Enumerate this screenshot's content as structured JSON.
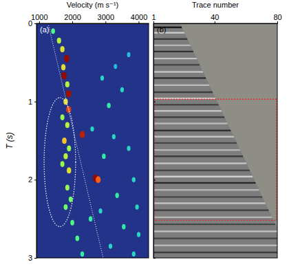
{
  "chart_data": [
    {
      "type": "scatter",
      "title": "(a)",
      "x_label": "Velocity (m s⁻¹)",
      "y_label": "T (s)",
      "xlim": [
        920,
        4300
      ],
      "xticks": [
        1000,
        2000,
        3000,
        4000
      ],
      "ylim": [
        0,
        3
      ],
      "yticks": [
        0,
        1,
        2,
        3
      ],
      "x": [
        1420,
        1600,
        1700,
        1830,
        1730,
        1750,
        1850,
        1890,
        1800,
        1890,
        1700,
        1850,
        2300,
        1760,
        1900,
        1800,
        1700,
        1900,
        2700,
        2780,
        1850,
        1950,
        1800,
        2000,
        2150,
        2300,
        2900,
        3300,
        3500,
        3100,
        2600,
        3250,
        3700,
        2950,
        3850,
        3350,
        3950,
        2850,
        3550,
        4000,
        3150,
        3850,
        2550,
        3700
      ],
      "values": [
        0.1,
        0.22,
        0.33,
        0.45,
        0.56,
        0.67,
        0.78,
        0.9,
        1.0,
        1.1,
        1.2,
        1.3,
        1.42,
        1.5,
        1.6,
        1.7,
        1.8,
        1.88,
        1.98,
        2.0,
        2.1,
        2.25,
        2.35,
        2.55,
        2.75,
        2.95,
        0.7,
        0.55,
        0.85,
        1.05,
        1.35,
        1.45,
        1.6,
        1.7,
        2.0,
        2.2,
        2.35,
        2.4,
        2.6,
        2.7,
        2.85,
        2.95,
        2.5,
        0.4
      ],
      "semblance": [
        0.4,
        0.55,
        0.6,
        1.0,
        0.6,
        1.0,
        0.55,
        0.95,
        0.6,
        0.85,
        0.5,
        0.55,
        0.9,
        0.65,
        0.5,
        0.55,
        0.5,
        0.6,
        1.0,
        0.8,
        0.5,
        0.45,
        0.45,
        0.4,
        0.4,
        0.35,
        0.3,
        0.25,
        0.3,
        0.35,
        0.3,
        0.3,
        0.3,
        0.35,
        0.3,
        0.35,
        0.3,
        0.3,
        0.35,
        0.3,
        0.3,
        0.3,
        0.35,
        0.25
      ],
      "semblance_range": [
        0,
        1
      ],
      "trend": {
        "velocity": [
          1270,
          2930
        ],
        "time": [
          0,
          3
        ]
      },
      "ellipse": {
        "velocity": [
          1150,
          2100
        ],
        "time": [
          0.95,
          2.6
        ]
      }
    },
    {
      "type": "seismic",
      "title": "(b)",
      "x_label": "Trace number",
      "xlim": [
        1,
        80
      ],
      "xticks": [
        1,
        40,
        80
      ],
      "ylim": [
        0,
        3
      ],
      "yticks": [
        0,
        1,
        2,
        3
      ],
      "tick_labels": "x",
      "mute": {
        "trace": [
          18,
          80
        ],
        "time": [
          0,
          2.62
        ]
      },
      "box": {
        "trace": [
          1,
          80
        ],
        "time": [
          0.97,
          2.52
        ]
      },
      "events": {
        "time": [
          0.05,
          0.12,
          0.2,
          0.28,
          0.36,
          0.45,
          0.53,
          0.62,
          0.7,
          0.79,
          0.88,
          0.96,
          1.04,
          1.12,
          1.2,
          1.28,
          1.37,
          1.45,
          1.53,
          1.62,
          1.7,
          1.79,
          1.88,
          1.96,
          2.04,
          2.13,
          2.22,
          2.3,
          2.39,
          2.48,
          2.57,
          2.66,
          2.75,
          2.84,
          2.93
        ],
        "amplitude": [
          0.9,
          -0.7,
          0.6,
          -0.5,
          0.7,
          -0.6,
          0.5,
          -0.6,
          0.7,
          -0.5,
          0.6,
          -0.7,
          0.5,
          -0.6,
          0.6,
          -0.5,
          0.7,
          -0.6,
          0.5,
          -0.5,
          0.6,
          -0.6,
          0.5,
          -0.7,
          0.8,
          -0.5,
          0.5,
          -0.6,
          0.6,
          -0.5,
          0.5,
          -0.6,
          0.5,
          -0.5,
          0.6
        ]
      }
    }
  ]
}
